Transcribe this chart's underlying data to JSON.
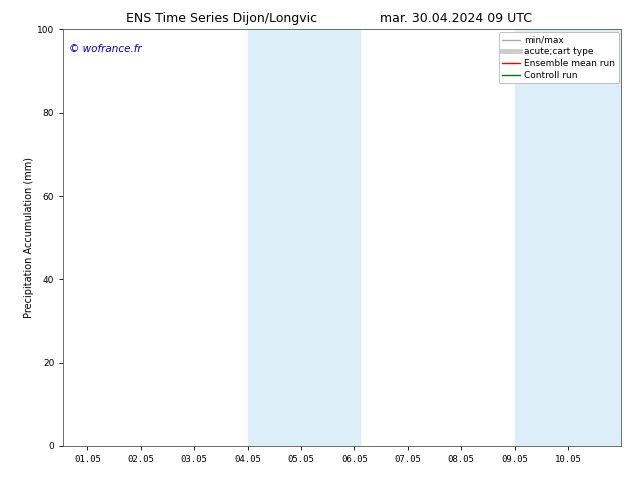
{
  "title_left": "ENS Time Series Dijon/Longvic",
  "title_right": "mar. 30.04.2024 09 UTC",
  "ylabel": "Precipitation Accumulation (mm)",
  "watermark": "© wofrance.fr",
  "watermark_color": "#0000cc",
  "ylim": [
    0,
    100
  ],
  "xtick_labels": [
    "01.05",
    "02.05",
    "03.05",
    "04.05",
    "05.05",
    "06.05",
    "07.05",
    "08.05",
    "09.05",
    "10.05"
  ],
  "xtick_positions": [
    0,
    1,
    2,
    3,
    4,
    5,
    6,
    7,
    8,
    9
  ],
  "ytick_positions": [
    0,
    20,
    40,
    60,
    80,
    100
  ],
  "shaded_regions": [
    {
      "xmin": 3.0,
      "xmax": 5.1,
      "color": "#dceef8"
    },
    {
      "xmin": 8.0,
      "xmax": 10.0,
      "color": "#dceef8"
    }
  ],
  "legend_entries": [
    {
      "label": "min/max",
      "color": "#aaaaaa",
      "lw": 1.0
    },
    {
      "label": "acute;cart type",
      "color": "#cccccc",
      "lw": 3.5
    },
    {
      "label": "Ensemble mean run",
      "color": "#ff0000",
      "lw": 1.0
    },
    {
      "label": "Controll run",
      "color": "#007700",
      "lw": 1.0
    }
  ],
  "bg_color": "#ffffff",
  "plot_bg_color": "#ffffff",
  "spine_color": "#555555",
  "xlim": [
    -0.45,
    10.0
  ],
  "font_size_title": 9,
  "font_size_axis": 7,
  "font_size_ticks": 6.5,
  "font_size_legend": 6.5,
  "font_size_watermark": 7.5
}
